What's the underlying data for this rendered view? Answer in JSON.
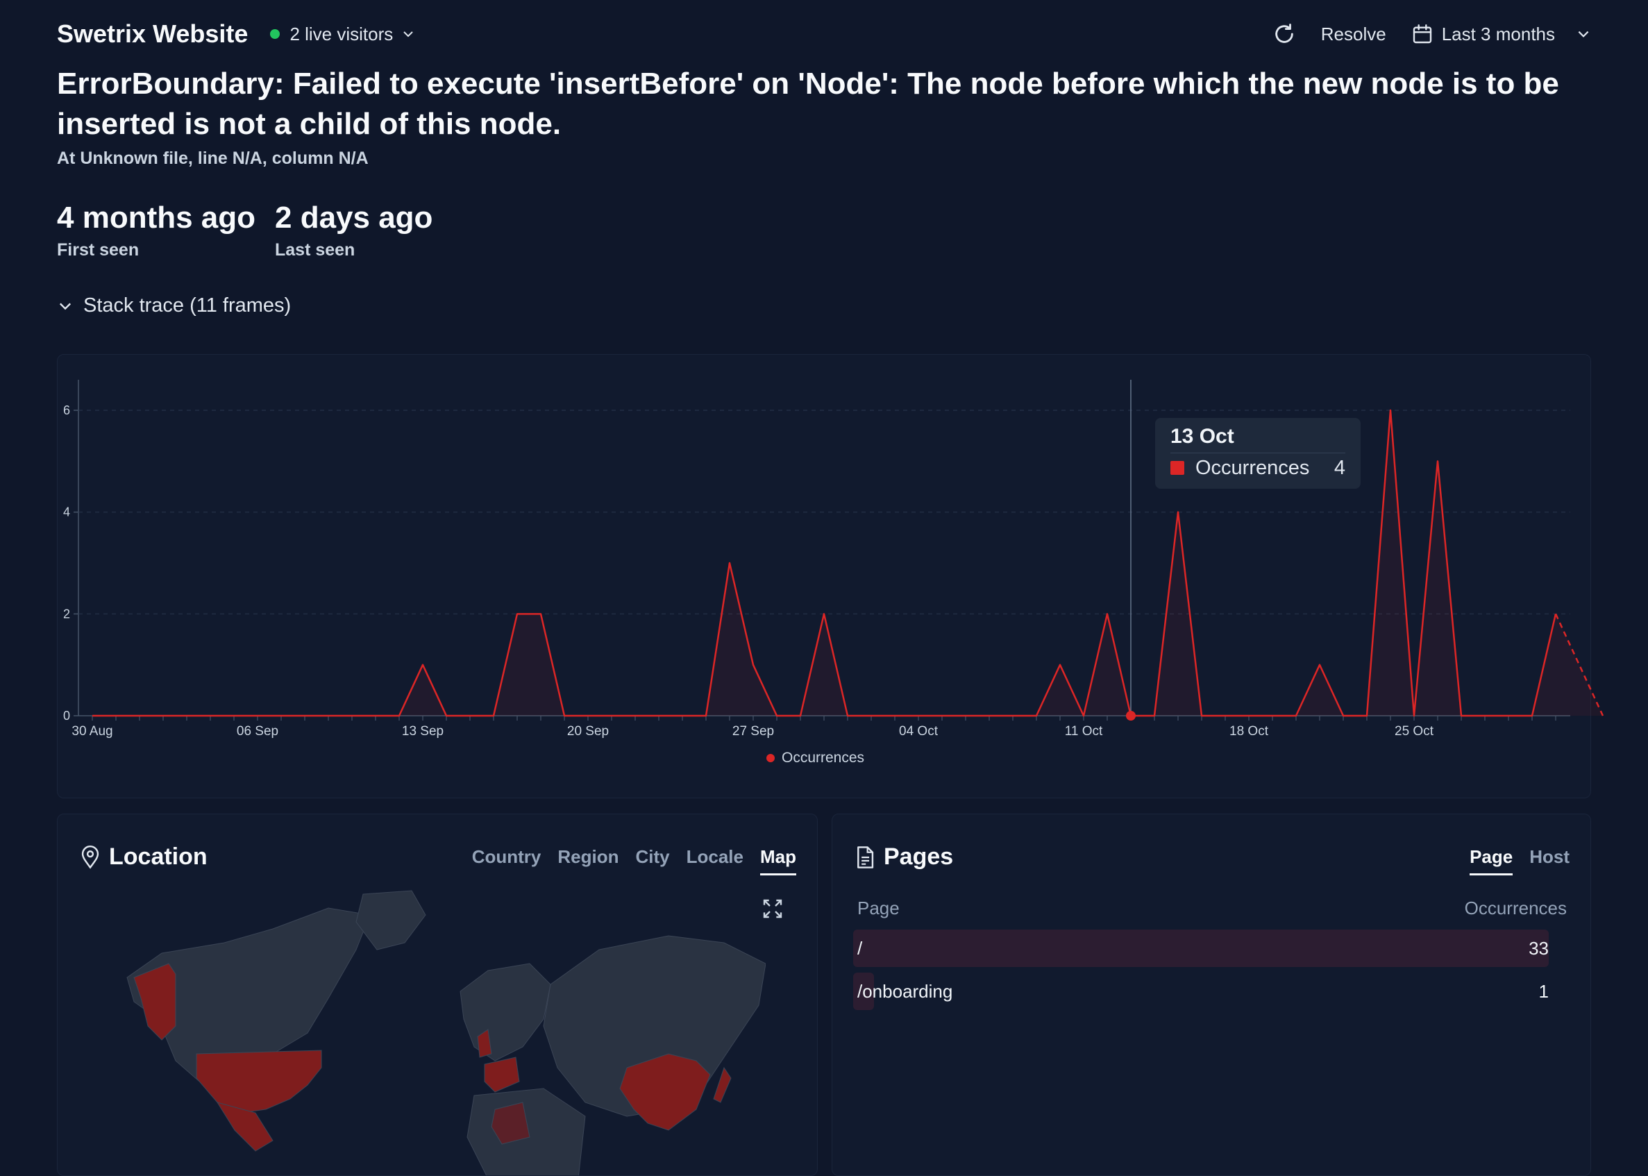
{
  "header": {
    "site_title": "Swetrix Website",
    "live_visitors": "2 live visitors",
    "resolve_label": "Resolve",
    "period_label": "Last 3 months"
  },
  "error": {
    "title": "ErrorBoundary: Failed to execute 'insertBefore' on 'Node': The node before which the new node is to be inserted is not a child of this node.",
    "location": "At Unknown file, line N/A, column N/A",
    "first_seen_value": "4 months ago",
    "first_seen_label": "First seen",
    "last_seen_value": "2 days ago",
    "last_seen_label": "Last seen",
    "stack_trace_label": "Stack trace (11 frames)"
  },
  "colors": {
    "background": "#0f172a",
    "panel": "#111a2e",
    "accent_red": "#dc2626",
    "live_green": "#22c55e"
  },
  "chart_data": {
    "type": "area",
    "x_tick_labels": [
      "30 Aug",
      "06 Sep",
      "13 Sep",
      "20 Sep",
      "27 Sep",
      "04 Oct",
      "11 Oct",
      "18 Oct",
      "25 Oct"
    ],
    "y_ticks": [
      0,
      2,
      4,
      6
    ],
    "ylim": [
      0,
      6
    ],
    "grid": "horizontal dashed",
    "legend_position": "bottom-center",
    "x_start": "30 Aug",
    "series": [
      {
        "name": "Occurrences",
        "values": [
          0,
          0,
          0,
          0,
          0,
          0,
          0,
          0,
          0,
          0,
          0,
          0,
          0,
          0,
          1,
          0,
          0,
          0,
          2,
          2,
          0,
          0,
          0,
          0,
          0,
          0,
          0,
          3,
          1,
          0,
          0,
          2,
          0,
          0,
          0,
          0,
          0,
          0,
          0,
          0,
          0,
          1,
          0,
          2,
          0,
          0,
          4,
          0,
          0,
          0,
          0,
          0,
          1,
          0,
          0,
          6,
          0,
          5,
          0,
          0,
          0,
          0,
          2,
          1,
          0
        ]
      }
    ],
    "tooltip": {
      "date": "13 Oct",
      "series": "Occurrences",
      "value": "4"
    }
  },
  "location": {
    "title": "Location",
    "tabs": [
      "Country",
      "Region",
      "City",
      "Locale",
      "Map"
    ],
    "active_tab": "Map"
  },
  "pages": {
    "title": "Pages",
    "tabs": [
      "Page",
      "Host"
    ],
    "active_tab": "Page",
    "col_page": "Page",
    "col_occurrences": "Occurrences",
    "rows": [
      {
        "path": "/",
        "count": "33",
        "share": 1.0
      },
      {
        "path": "/onboarding",
        "count": "1",
        "share": 0.03
      }
    ]
  }
}
